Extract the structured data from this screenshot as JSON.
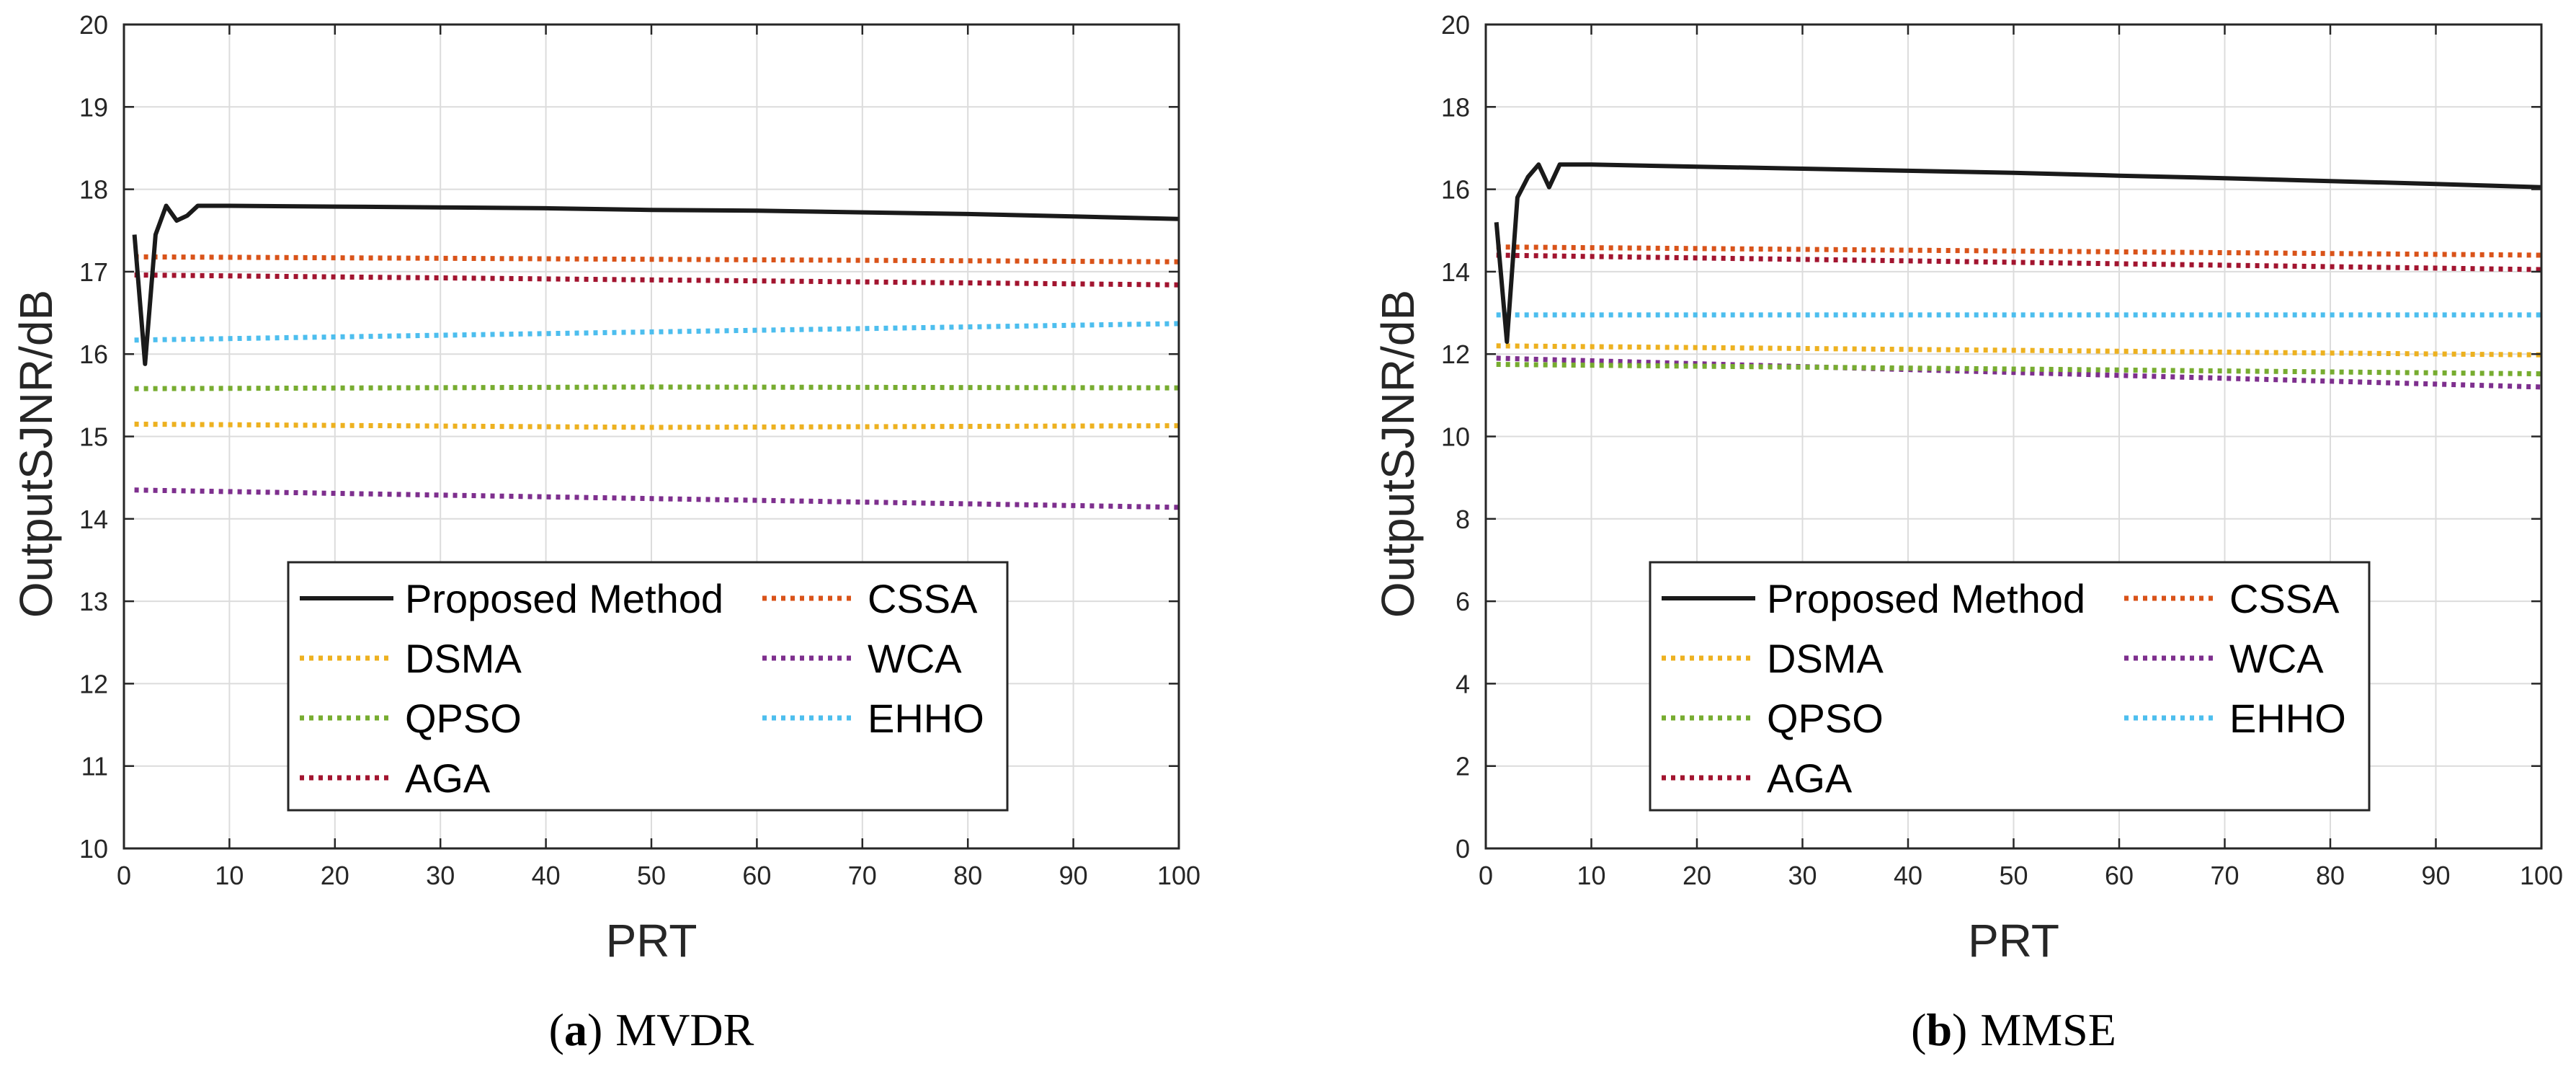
{
  "figure": {
    "type": "line",
    "colors": {
      "proposed": "#1a1a1a",
      "cssa": "#D95319",
      "dsma": "#EDB120",
      "wca": "#7E2F8E",
      "qpso": "#77AC30",
      "ehho": "#4DBEEE",
      "aga": "#A2142F",
      "grid": "#dcdcdc",
      "axis": "#262626"
    }
  },
  "chart_data": [
    {
      "type": "line",
      "id": "mvdr",
      "caption_label": "(a)",
      "caption_paren_open": "(",
      "caption_letter": "a",
      "caption_paren_close": ")",
      "caption_text": "MVDR",
      "xlabel": "PRT",
      "ylabel": "OutputSJNR/dB",
      "xlim": [
        0,
        100
      ],
      "ylim": [
        10,
        20
      ],
      "xticks": [
        0,
        10,
        20,
        30,
        40,
        50,
        60,
        70,
        80,
        90,
        100
      ],
      "yticks": [
        10,
        11,
        12,
        13,
        14,
        15,
        16,
        17,
        18,
        19,
        20
      ],
      "grid": true,
      "legend_position": "lower-center",
      "series": [
        {
          "key": "proposed",
          "name": "Proposed Method",
          "style": "solid",
          "x": [
            1,
            2,
            3,
            4,
            5,
            6,
            7,
            8,
            10,
            20,
            30,
            40,
            50,
            60,
            70,
            80,
            90,
            100
          ],
          "y": [
            17.45,
            15.88,
            17.45,
            17.8,
            17.62,
            17.68,
            17.8,
            17.8,
            17.8,
            17.79,
            17.78,
            17.77,
            17.75,
            17.74,
            17.72,
            17.7,
            17.67,
            17.64
          ]
        },
        {
          "key": "cssa",
          "name": "CSSA",
          "style": "dotted",
          "x": [
            1,
            100
          ],
          "y": [
            17.18,
            17.12
          ]
        },
        {
          "key": "dsma",
          "name": "DSMA",
          "style": "dotted",
          "x": [
            1,
            50,
            100
          ],
          "y": [
            15.15,
            15.11,
            15.13
          ]
        },
        {
          "key": "wca",
          "name": "WCA",
          "style": "dotted",
          "x": [
            1,
            100
          ],
          "y": [
            14.35,
            14.14
          ]
        },
        {
          "key": "qpso",
          "name": "QPSO",
          "style": "dotted",
          "x": [
            1,
            50,
            100
          ],
          "y": [
            15.58,
            15.6,
            15.59
          ]
        },
        {
          "key": "ehho",
          "name": "EHHO",
          "style": "dotted",
          "x": [
            1,
            100
          ],
          "y": [
            16.17,
            16.37
          ]
        },
        {
          "key": "aga",
          "name": "AGA",
          "style": "dotted",
          "x": [
            1,
            100
          ],
          "y": [
            16.96,
            16.84
          ]
        }
      ]
    },
    {
      "type": "line",
      "id": "mmse",
      "caption_label": "(b)",
      "caption_paren_open": "(",
      "caption_letter": "b",
      "caption_paren_close": ")",
      "caption_text": "MMSE",
      "xlabel": "PRT",
      "ylabel": "OutputSJNR/dB",
      "xlim": [
        0,
        100
      ],
      "ylim": [
        0,
        20
      ],
      "xticks": [
        0,
        10,
        20,
        30,
        40,
        50,
        60,
        70,
        80,
        90,
        100
      ],
      "yticks": [
        0,
        2,
        4,
        6,
        8,
        10,
        12,
        14,
        16,
        18,
        20
      ],
      "grid": true,
      "legend_position": "lower-center",
      "series": [
        {
          "key": "proposed",
          "name": "Proposed Method",
          "style": "solid",
          "x": [
            1,
            2,
            3,
            4,
            5,
            6,
            7,
            10,
            20,
            30,
            40,
            50,
            60,
            70,
            80,
            90,
            100
          ],
          "y": [
            15.2,
            12.3,
            15.8,
            16.3,
            16.6,
            16.05,
            16.6,
            16.6,
            16.55,
            16.5,
            16.45,
            16.4,
            16.33,
            16.27,
            16.2,
            16.13,
            16.05
          ]
        },
        {
          "key": "cssa",
          "name": "CSSA",
          "style": "dotted",
          "x": [
            1,
            100
          ],
          "y": [
            14.6,
            14.4
          ]
        },
        {
          "key": "dsma",
          "name": "DSMA",
          "style": "dotted",
          "x": [
            1,
            100
          ],
          "y": [
            12.2,
            11.98
          ]
        },
        {
          "key": "wca",
          "name": "WCA",
          "style": "dotted",
          "x": [
            1,
            100
          ],
          "y": [
            11.9,
            11.2
          ]
        },
        {
          "key": "qpso",
          "name": "QPSO",
          "style": "dotted",
          "x": [
            1,
            100
          ],
          "y": [
            11.75,
            11.52
          ]
        },
        {
          "key": "ehho",
          "name": "EHHO",
          "style": "dotted",
          "x": [
            1,
            100
          ],
          "y": [
            12.95,
            12.95
          ]
        },
        {
          "key": "aga",
          "name": "AGA",
          "style": "dotted",
          "x": [
            1,
            100
          ],
          "y": [
            14.4,
            14.05
          ]
        }
      ]
    }
  ],
  "legend_order": [
    "proposed",
    "cssa",
    "dsma",
    "wca",
    "qpso",
    "ehho",
    "aga"
  ]
}
